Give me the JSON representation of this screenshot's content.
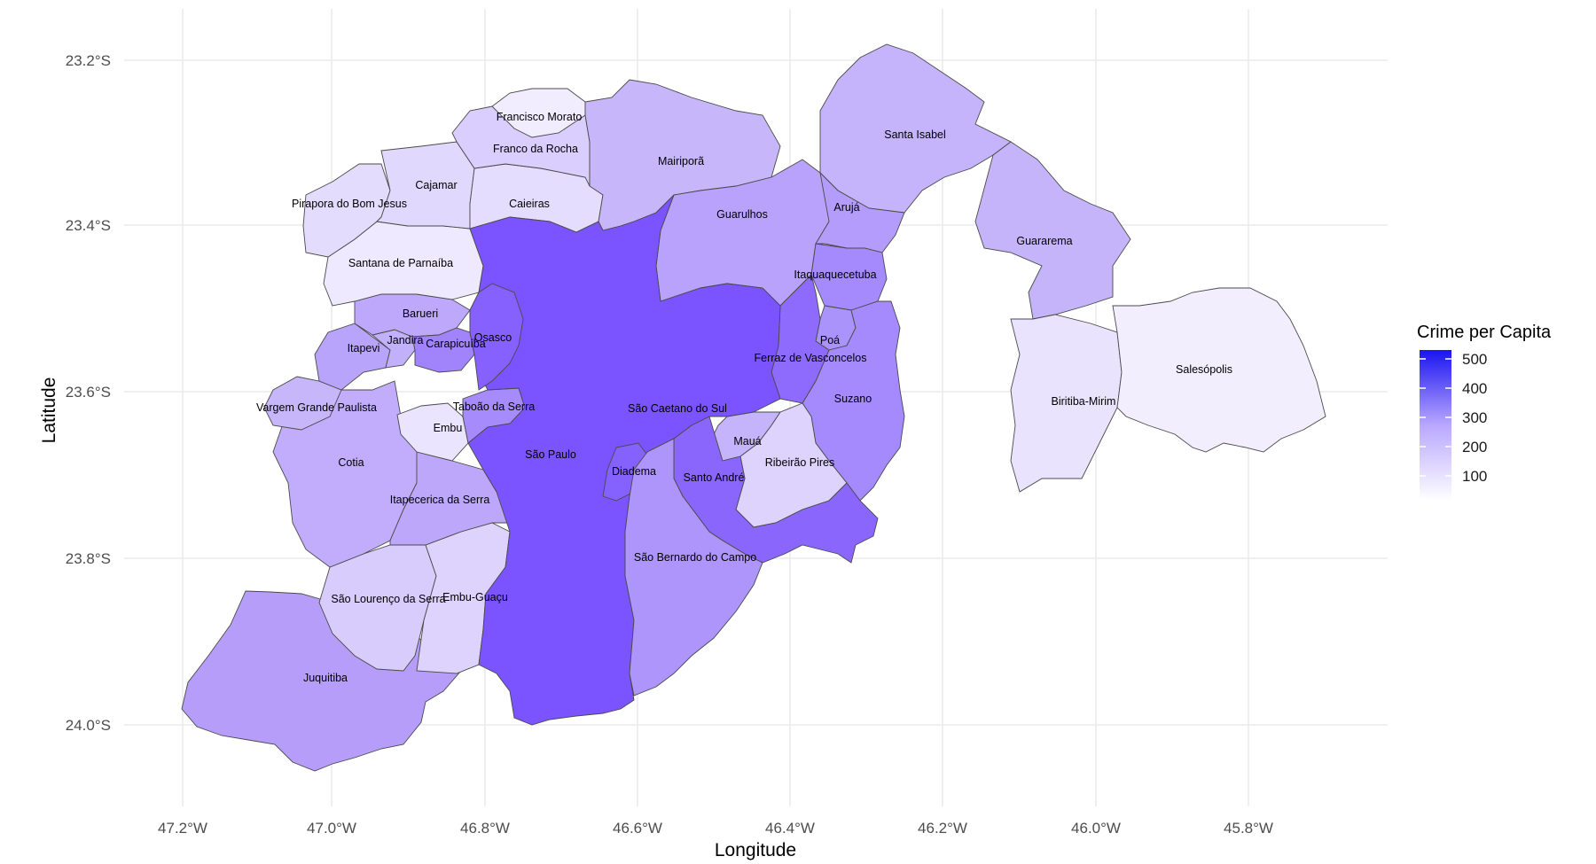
{
  "axes": {
    "xlabel": "Longitude",
    "ylabel": "Latitude",
    "x_ticks": [
      "47.2°W",
      "47.0°W",
      "46.8°W",
      "46.6°W",
      "46.4°W",
      "46.2°W",
      "46.0°W",
      "45.8°W"
    ],
    "y_ticks": [
      "23.2°S",
      "23.4°S",
      "23.6°S",
      "23.8°S",
      "24.0°S"
    ]
  },
  "legend": {
    "title": "Crime per Capita",
    "ticks": [
      "500",
      "400",
      "300",
      "200",
      "100"
    ],
    "low_color": "#ffffff",
    "high_color": "#1a14f0",
    "placement": "right"
  },
  "colors": {
    "sao_paulo_fill": "#7b54ff",
    "grid": "#ebebeb",
    "border": "#4a4a4a"
  },
  "municipalities": [
    {
      "name": "Francisco Morato"
    },
    {
      "name": "Franco da Rocha"
    },
    {
      "name": "Mairiporã"
    },
    {
      "name": "Santa Isabel"
    },
    {
      "name": "Cajamar"
    },
    {
      "name": "Pirapora do Bom Jesus"
    },
    {
      "name": "Caieiras"
    },
    {
      "name": "Guarulhos"
    },
    {
      "name": "Arujá"
    },
    {
      "name": "Guararema"
    },
    {
      "name": "Santana de Parnaíba"
    },
    {
      "name": "Itaquaquecetuba"
    },
    {
      "name": "Barueri"
    },
    {
      "name": "Osasco"
    },
    {
      "name": "Jandira"
    },
    {
      "name": "Carapicuíba"
    },
    {
      "name": "Poá"
    },
    {
      "name": "Itapevi"
    },
    {
      "name": "Ferraz de Vasconcelos"
    },
    {
      "name": "Salesópolis"
    },
    {
      "name": "Vargem Grande Paulista"
    },
    {
      "name": "Taboão da Serra"
    },
    {
      "name": "São Caetano do Sul"
    },
    {
      "name": "Suzano"
    },
    {
      "name": "Biritiba-Mirim"
    },
    {
      "name": "Embu"
    },
    {
      "name": "Mauá"
    },
    {
      "name": "São Paulo"
    },
    {
      "name": "Cotia"
    },
    {
      "name": "Ribeirão Pires"
    },
    {
      "name": "Diadema"
    },
    {
      "name": "Santo André"
    },
    {
      "name": "Itapecerica da Serra"
    },
    {
      "name": "São Bernardo do Campo"
    },
    {
      "name": "São Lourenço da Serra"
    },
    {
      "name": "Embu-Guaçu"
    },
    {
      "name": "Juquitiba"
    }
  ]
}
